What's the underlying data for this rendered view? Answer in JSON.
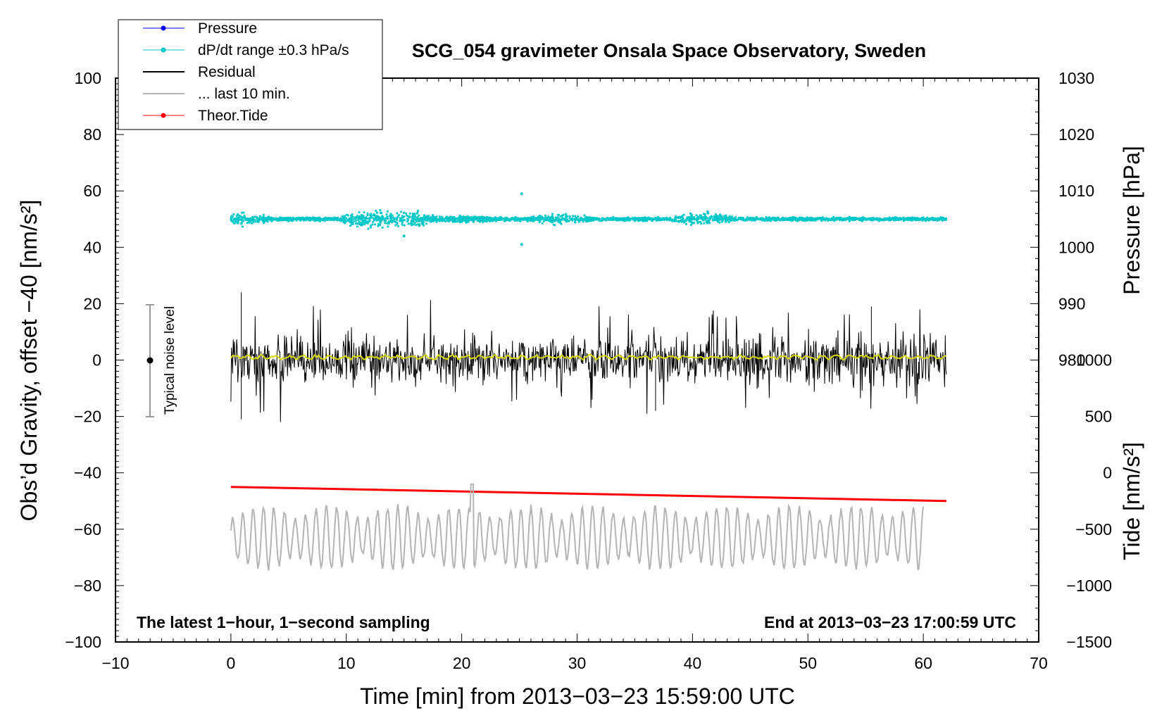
{
  "chart_data": {
    "type": "line",
    "title": "SCG_054 gravimeter Onsala Space Observatory, Sweden",
    "xlabel": "Time [min] from 2013−03−23 15:59:00 UTC",
    "ylabel_left": "Obs’d Gravity, offset −40 [nm/s²]",
    "ylabel_pressure": "Pressure [hPa]",
    "ylabel_tide": "Tide [nm/s²]",
    "xlim": [
      -10,
      70
    ],
    "ylim_left": [
      -100,
      100
    ],
    "pressure_axis_range": [
      980,
      1030
    ],
    "tide_axis_range": [
      -1500,
      1000
    ],
    "x_ticks": [
      "−10",
      "0",
      "10",
      "20",
      "30",
      "40",
      "50",
      "60",
      "70"
    ],
    "y_ticks_left": [
      "100",
      "80",
      "60",
      "40",
      "20",
      "0",
      "−20",
      "−40",
      "−60",
      "−80",
      "−100"
    ],
    "y_ticks_pressure": [
      "1030",
      "1020",
      "1010",
      "1000",
      "990",
      "980"
    ],
    "y_ticks_tide": [
      "1000",
      "500",
      "0",
      "−500",
      "−1000",
      "−1500"
    ],
    "grid": false,
    "legend_position": "top-left",
    "legend": [
      {
        "label": "Pressure",
        "color": "#0000ff",
        "style": "line-dot"
      },
      {
        "label": "dP/dt range ±0.3 hPa/s",
        "color": "#00c8c8",
        "style": "line-dot"
      },
      {
        "label": "Residual",
        "color": "#000000",
        "style": "line"
      },
      {
        "label": "... last 10 min.",
        "color": "#b4b4b4",
        "style": "line"
      },
      {
        "label": "Theor.Tide",
        "color": "#ff0000",
        "style": "line-dot"
      }
    ],
    "noise_level": {
      "label": "Typical noise level",
      "x": -7,
      "y_center": 0,
      "y_range": [
        -20,
        20
      ]
    },
    "annotations": {
      "bottom_left": "The latest 1−hour, 1−second sampling",
      "bottom_right": "End at 2013−03−23 17:00:59 UTC"
    },
    "series": [
      {
        "name": "dP/dt range ±0.3 hPa/s",
        "color": "#00c8c8",
        "x_range": [
          0,
          62
        ],
        "baseline": 50,
        "spread": [
          44,
          59
        ],
        "outliers": [
          [
            25.2,
            59
          ],
          [
            25.2,
            41
          ],
          [
            15,
            44
          ]
        ]
      },
      {
        "name": "Residual",
        "color": "#000000",
        "x_range": [
          0,
          62
        ],
        "baseline": 0,
        "spread": [
          -22,
          24
        ]
      },
      {
        "name": "Residual (smoothed)",
        "color": "#d8d800",
        "x_range": [
          0,
          62
        ],
        "baseline": 1
      },
      {
        "name": "Theor.Tide",
        "color": "#ff0000",
        "x": [
          0,
          62
        ],
        "y": [
          -45,
          -50
        ]
      },
      {
        "name": "... last 10 min.",
        "color": "#b4b4b4",
        "x_range": [
          0,
          60
        ],
        "baseline": -63,
        "spread": [
          -76,
          -44
        ]
      }
    ]
  }
}
